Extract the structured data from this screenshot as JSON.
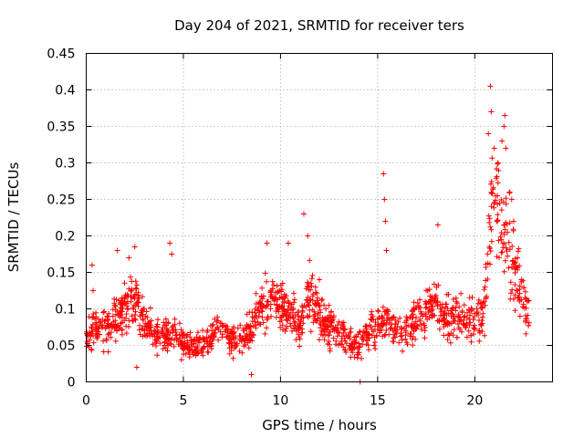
{
  "chart_data": {
    "type": "scatter",
    "title": "Day 204 of 2021, SRMTID for receiver ters",
    "xlabel": "GPS time / hours",
    "ylabel": "SRMTID / TECUs",
    "xlim": [
      0,
      24
    ],
    "ylim": [
      0,
      0.45
    ],
    "xticks": [
      0,
      5,
      10,
      15,
      20
    ],
    "yticks": [
      0,
      0.05,
      0.1,
      0.15,
      0.2,
      0.25,
      0.3,
      0.35,
      0.4,
      0.45
    ],
    "xtick_labels": [
      "0",
      "5",
      "10",
      "15",
      "20"
    ],
    "ytick_labels": [
      "0",
      "0.05",
      "0.1",
      "0.15",
      "0.2",
      "0.25",
      "0.3",
      "0.35",
      "0.4",
      "0.45"
    ],
    "grid": true,
    "marker": "+",
    "color": "#ff0000",
    "x_extent": [
      0,
      22.8
    ],
    "trend": [
      [
        0,
        0.06
      ],
      [
        0.5,
        0.075
      ],
      [
        1,
        0.075
      ],
      [
        1.5,
        0.085
      ],
      [
        2,
        0.1
      ],
      [
        2.5,
        0.115
      ],
      [
        3,
        0.08
      ],
      [
        3.5,
        0.065
      ],
      [
        4,
        0.06
      ],
      [
        4.5,
        0.07
      ],
      [
        5,
        0.055
      ],
      [
        5.5,
        0.05
      ],
      [
        6,
        0.055
      ],
      [
        6.5,
        0.065
      ],
      [
        7,
        0.075
      ],
      [
        7.5,
        0.06
      ],
      [
        8,
        0.055
      ],
      [
        8.5,
        0.075
      ],
      [
        9,
        0.1
      ],
      [
        9.5,
        0.11
      ],
      [
        10,
        0.1
      ],
      [
        10.5,
        0.085
      ],
      [
        11,
        0.08
      ],
      [
        11.5,
        0.12
      ],
      [
        12,
        0.085
      ],
      [
        12.5,
        0.075
      ],
      [
        13,
        0.07
      ],
      [
        13.5,
        0.055
      ],
      [
        14,
        0.045
      ],
      [
        14.5,
        0.07
      ],
      [
        15,
        0.075
      ],
      [
        15.5,
        0.085
      ],
      [
        16,
        0.07
      ],
      [
        16.5,
        0.065
      ],
      [
        17,
        0.09
      ],
      [
        17.5,
        0.1
      ],
      [
        18,
        0.11
      ],
      [
        18.5,
        0.085
      ],
      [
        19,
        0.09
      ],
      [
        19.5,
        0.085
      ],
      [
        20,
        0.08
      ],
      [
        20.5,
        0.1
      ],
      [
        20.8,
        0.22
      ],
      [
        21,
        0.26
      ],
      [
        21.3,
        0.24
      ],
      [
        21.6,
        0.2
      ],
      [
        21.9,
        0.17
      ],
      [
        22.2,
        0.14
      ],
      [
        22.5,
        0.1
      ],
      [
        22.8,
        0.09
      ]
    ],
    "points": [
      [
        0.3,
        0.16
      ],
      [
        0.35,
        0.125
      ],
      [
        1.6,
        0.18
      ],
      [
        2.2,
        0.17
      ],
      [
        2.5,
        0.185
      ],
      [
        2.6,
        0.02
      ],
      [
        4.3,
        0.19
      ],
      [
        4.4,
        0.175
      ],
      [
        8.5,
        0.01
      ],
      [
        9.3,
        0.19
      ],
      [
        10.4,
        0.19
      ],
      [
        11.2,
        0.23
      ],
      [
        11.4,
        0.2
      ],
      [
        12.0,
        0.14
      ],
      [
        14.1,
        0.0
      ],
      [
        15.3,
        0.285
      ],
      [
        15.35,
        0.25
      ],
      [
        15.4,
        0.22
      ],
      [
        15.45,
        0.18
      ],
      [
        18.1,
        0.215
      ],
      [
        20.7,
        0.34
      ],
      [
        20.8,
        0.405
      ],
      [
        20.85,
        0.37
      ],
      [
        21.0,
        0.32
      ],
      [
        21.2,
        0.3
      ],
      [
        21.4,
        0.33
      ],
      [
        21.5,
        0.35
      ],
      [
        21.55,
        0.365
      ],
      [
        21.6,
        0.32
      ],
      [
        21.8,
        0.26
      ],
      [
        21.9,
        0.25
      ],
      [
        22.0,
        0.22
      ],
      [
        22.2,
        0.17
      ],
      [
        22.4,
        0.14
      ],
      [
        22.7,
        0.11
      ]
    ]
  }
}
